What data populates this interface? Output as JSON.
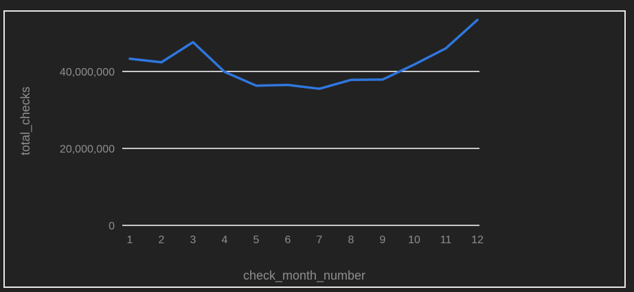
{
  "chart_data": {
    "type": "line",
    "title": "",
    "xlabel": "check_month_number",
    "ylabel": "total_checks",
    "x": [
      1,
      2,
      3,
      4,
      5,
      6,
      7,
      8,
      9,
      10,
      11,
      12
    ],
    "series": [
      {
        "values": [
          43300000,
          42400000,
          47600000,
          39900000,
          36300000,
          36500000,
          35500000,
          37800000,
          37900000,
          41800000,
          46000000,
          53400000
        ]
      }
    ],
    "yticks": [
      0,
      20000000,
      40000000
    ],
    "ytick_labels": [
      "0",
      "20,000,000",
      "40,000,000"
    ],
    "xtick_labels": [
      "1",
      "2",
      "3",
      "4",
      "5",
      "6",
      "7",
      "8",
      "9",
      "10",
      "11",
      "12"
    ],
    "ylim": [
      0,
      53400000
    ],
    "xlim": [
      1,
      12
    ],
    "grid": true,
    "colors": {
      "background": "#222222",
      "line": "#2f77df",
      "grid": "#ffffff",
      "text": "#8e8e8e",
      "border": "#e8e8e8"
    }
  }
}
